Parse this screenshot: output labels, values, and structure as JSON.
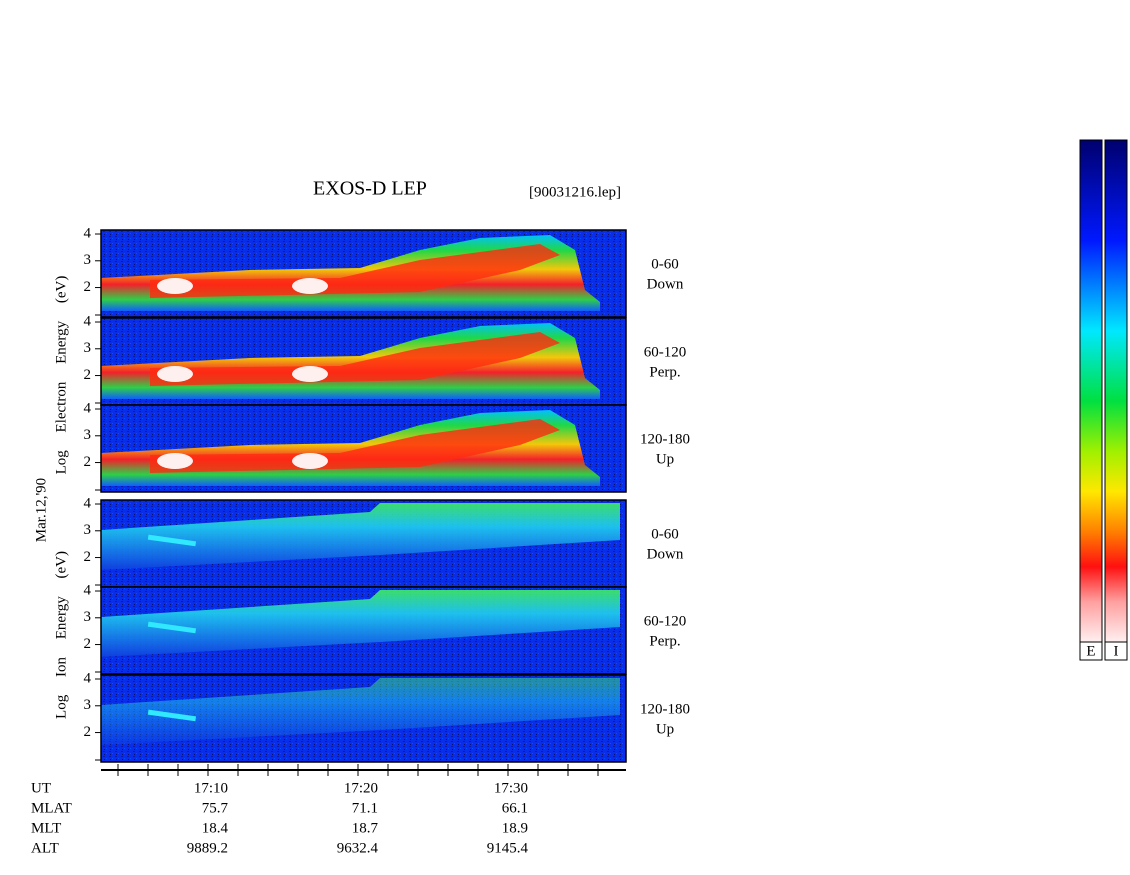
{
  "title": "EXOS-D LEP",
  "file": "[90031216.lep]",
  "date_label": "Mar.12,'90",
  "species": [
    {
      "label": "Log Electron Energy (eV)",
      "panels": [
        {
          "pitch": "0-60",
          "dir": "Down"
        },
        {
          "pitch": "60-120",
          "dir": "Perp."
        },
        {
          "pitch": "120-180",
          "dir": "Up"
        }
      ]
    },
    {
      "label": "Log Ion Energy (eV)",
      "panels": [
        {
          "pitch": "0-60",
          "dir": "Down"
        },
        {
          "pitch": "60-120",
          "dir": "Perp."
        },
        {
          "pitch": "120-180",
          "dir": "Up"
        }
      ]
    }
  ],
  "ylim": [
    0.9,
    4.15
  ],
  "yticks": [
    2,
    3,
    4
  ],
  "ephemeris": [
    {
      "label": "UT",
      "values": [
        "17:10",
        "17:20",
        "17:30"
      ]
    },
    {
      "label": "MLAT",
      "values": [
        75.7,
        71.1,
        66.1
      ]
    },
    {
      "label": "MLT",
      "values": [
        18.4,
        18.7,
        18.9
      ]
    },
    {
      "label": "ALT",
      "values": [
        9889.2,
        9632.4,
        9145.4
      ]
    }
  ],
  "colorbars": [
    "E",
    "I"
  ]
}
